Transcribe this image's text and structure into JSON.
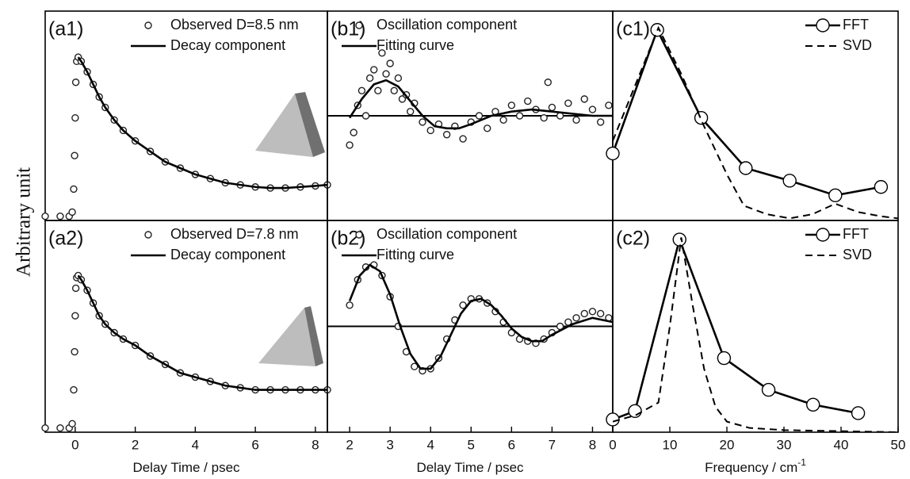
{
  "figure": {
    "ylabel": "Arbitrary unit"
  },
  "chart_data": [
    {
      "type": "line",
      "label": "(a1)",
      "xlim": [
        -1,
        8.4
      ],
      "ylim": [
        0,
        1
      ],
      "marker_size": 4,
      "series": [
        {
          "name": "Observed D=8.5 nm",
          "color": "#222222",
          "marker": "circle",
          "line": false,
          "x": [
            -1,
            -0.5,
            -0.2,
            -0.1,
            -0.05,
            -0.02,
            0,
            0.02,
            0.05,
            0.1,
            0.2,
            0.4,
            0.6,
            0.8,
            1.0,
            1.3,
            1.6,
            2,
            2.5,
            3,
            3.5,
            4,
            4.5,
            5,
            5.5,
            6,
            6.5,
            7,
            7.5,
            8,
            8.4
          ],
          "values": [
            0.02,
            0.02,
            0.02,
            0.04,
            0.15,
            0.31,
            0.49,
            0.66,
            0.76,
            0.78,
            0.76,
            0.71,
            0.65,
            0.59,
            0.54,
            0.48,
            0.43,
            0.38,
            0.33,
            0.28,
            0.25,
            0.22,
            0.2,
            0.18,
            0.17,
            0.16,
            0.155,
            0.155,
            0.16,
            0.165,
            0.17
          ]
        },
        {
          "name": "Decay component",
          "color": "#000000",
          "marker": "none",
          "line": true,
          "x": [
            0.1,
            0.2,
            0.4,
            0.6,
            0.8,
            1.0,
            1.3,
            1.6,
            2,
            2.5,
            3,
            3.5,
            4,
            4.5,
            5,
            5.5,
            6,
            6.5,
            7,
            7.5,
            8,
            8.4
          ],
          "values": [
            0.78,
            0.76,
            0.71,
            0.65,
            0.59,
            0.54,
            0.48,
            0.43,
            0.38,
            0.33,
            0.28,
            0.25,
            0.22,
            0.2,
            0.18,
            0.17,
            0.16,
            0.155,
            0.155,
            0.16,
            0.165,
            0.17
          ]
        }
      ]
    },
    {
      "type": "line",
      "label": "(b1)",
      "xlim": [
        1.45,
        8.5
      ],
      "ylim": [
        0,
        1
      ],
      "marker_size": 4,
      "baseline": 0.5,
      "series": [
        {
          "name": "Oscillation component",
          "color": "#222222",
          "marker": "circle",
          "line": false,
          "x": [
            2.0,
            2.1,
            2.2,
            2.3,
            2.4,
            2.5,
            2.6,
            2.7,
            2.8,
            2.9,
            3.0,
            3.1,
            3.2,
            3.3,
            3.4,
            3.5,
            3.6,
            3.8,
            4.0,
            4.2,
            4.4,
            4.6,
            4.8,
            5.0,
            5.2,
            5.4,
            5.6,
            5.8,
            6.0,
            6.2,
            6.4,
            6.6,
            6.8,
            6.9,
            7.0,
            7.2,
            7.4,
            7.6,
            7.8,
            8.0,
            8.2,
            8.4
          ],
          "values": [
            0.36,
            0.42,
            0.55,
            0.62,
            0.5,
            0.68,
            0.72,
            0.62,
            0.8,
            0.7,
            0.75,
            0.62,
            0.68,
            0.58,
            0.6,
            0.52,
            0.56,
            0.47,
            0.43,
            0.46,
            0.41,
            0.45,
            0.39,
            0.47,
            0.5,
            0.44,
            0.52,
            0.48,
            0.55,
            0.5,
            0.57,
            0.53,
            0.49,
            0.66,
            0.54,
            0.5,
            0.56,
            0.48,
            0.58,
            0.53,
            0.47,
            0.55
          ]
        },
        {
          "name": "Fitting curve",
          "color": "#000000",
          "marker": "none",
          "line": true,
          "x": [
            2,
            2.3,
            2.6,
            2.9,
            3.2,
            3.5,
            3.8,
            4.1,
            4.4,
            4.7,
            5.0,
            5.5,
            6,
            6.5,
            7,
            7.5,
            8,
            8.5
          ],
          "values": [
            0.49,
            0.58,
            0.65,
            0.67,
            0.64,
            0.57,
            0.5,
            0.45,
            0.44,
            0.44,
            0.46,
            0.5,
            0.52,
            0.53,
            0.52,
            0.51,
            0.5,
            0.5
          ]
        }
      ]
    },
    {
      "type": "line",
      "label": "(c1)",
      "xlim": [
        0,
        50
      ],
      "ylim": [
        0,
        1
      ],
      "marker_size": 8,
      "series": [
        {
          "name": "FFT",
          "color": "#000000",
          "marker": "circle",
          "line": true,
          "x": [
            0,
            7.8,
            15.5,
            23.3,
            31,
            39,
            47
          ],
          "values": [
            0.32,
            0.91,
            0.49,
            0.25,
            0.19,
            0.12,
            0.16
          ]
        },
        {
          "name": "SVD",
          "color": "#000000",
          "marker": "none",
          "line": true,
          "dash": true,
          "x": [
            0,
            4,
            8,
            12,
            16,
            20,
            23,
            27,
            31,
            35,
            39,
            43,
            47,
            50
          ],
          "values": [
            0.38,
            0.65,
            0.92,
            0.7,
            0.45,
            0.22,
            0.07,
            0.03,
            0.01,
            0.03,
            0.08,
            0.04,
            0.02,
            0.01
          ]
        }
      ]
    },
    {
      "type": "line",
      "label": "(a2)",
      "xlim": [
        -1,
        8.4
      ],
      "ylim": [
        0,
        1
      ],
      "marker_size": 4,
      "xticks": [
        0,
        2,
        4,
        6,
        8
      ],
      "xlabel": "Delay Time / psec",
      "series": [
        {
          "name": "Observed D=7.8 nm",
          "color": "#222222",
          "marker": "circle",
          "line": false,
          "x": [
            -1,
            -0.5,
            -0.2,
            -0.1,
            -0.05,
            -0.02,
            0,
            0.02,
            0.05,
            0.1,
            0.2,
            0.4,
            0.6,
            0.8,
            1.0,
            1.3,
            1.6,
            2,
            2.5,
            3,
            3.5,
            4,
            4.5,
            5,
            5.5,
            6,
            6.5,
            7,
            7.5,
            8,
            8.4
          ],
          "values": [
            0.02,
            0.02,
            0.02,
            0.04,
            0.2,
            0.38,
            0.55,
            0.68,
            0.73,
            0.74,
            0.72,
            0.67,
            0.61,
            0.55,
            0.51,
            0.47,
            0.44,
            0.41,
            0.36,
            0.32,
            0.28,
            0.26,
            0.24,
            0.22,
            0.21,
            0.2,
            0.2,
            0.2,
            0.2,
            0.2,
            0.2
          ]
        },
        {
          "name": "Decay component",
          "color": "#000000",
          "marker": "none",
          "line": true,
          "x": [
            0.1,
            0.2,
            0.4,
            0.6,
            0.8,
            1.0,
            1.3,
            1.6,
            2,
            2.5,
            3,
            3.5,
            4,
            4.5,
            5,
            5.5,
            6,
            6.5,
            7,
            7.5,
            8,
            8.4
          ],
          "values": [
            0.74,
            0.72,
            0.67,
            0.61,
            0.55,
            0.51,
            0.47,
            0.44,
            0.41,
            0.36,
            0.32,
            0.28,
            0.26,
            0.24,
            0.22,
            0.21,
            0.2,
            0.2,
            0.2,
            0.2,
            0.2,
            0.2
          ]
        }
      ]
    },
    {
      "type": "line",
      "label": "(b2)",
      "xlim": [
        1.45,
        8.5
      ],
      "ylim": [
        0,
        1
      ],
      "marker_size": 4,
      "baseline": 0.5,
      "xticks": [
        2,
        3,
        4,
        5,
        6,
        7,
        8
      ],
      "xlabel": "Delay Time / psec",
      "series": [
        {
          "name": "Oscillation component",
          "color": "#222222",
          "marker": "circle",
          "line": false,
          "x": [
            2.0,
            2.2,
            2.4,
            2.6,
            2.8,
            3.0,
            3.2,
            3.4,
            3.6,
            3.8,
            4.0,
            4.2,
            4.4,
            4.6,
            4.8,
            5.0,
            5.2,
            5.4,
            5.6,
            5.8,
            6.0,
            6.2,
            6.4,
            6.6,
            6.8,
            7.0,
            7.2,
            7.4,
            7.6,
            7.8,
            8.0,
            8.2,
            8.4
          ],
          "values": [
            0.6,
            0.72,
            0.78,
            0.79,
            0.74,
            0.64,
            0.5,
            0.38,
            0.31,
            0.29,
            0.3,
            0.35,
            0.44,
            0.53,
            0.6,
            0.63,
            0.63,
            0.61,
            0.57,
            0.52,
            0.47,
            0.44,
            0.43,
            0.42,
            0.44,
            0.47,
            0.5,
            0.52,
            0.54,
            0.56,
            0.57,
            0.56,
            0.54
          ]
        },
        {
          "name": "Fitting curve",
          "color": "#000000",
          "marker": "none",
          "line": true,
          "x": [
            2,
            2.25,
            2.5,
            2.75,
            3,
            3.25,
            3.5,
            3.75,
            4,
            4.25,
            4.5,
            4.75,
            5,
            5.25,
            5.5,
            5.75,
            6,
            6.25,
            6.5,
            6.75,
            7,
            7.5,
            8,
            8.5
          ],
          "values": [
            0.62,
            0.74,
            0.79,
            0.76,
            0.65,
            0.5,
            0.37,
            0.3,
            0.3,
            0.36,
            0.46,
            0.56,
            0.62,
            0.63,
            0.6,
            0.55,
            0.49,
            0.45,
            0.43,
            0.43,
            0.46,
            0.51,
            0.54,
            0.52
          ]
        }
      ]
    },
    {
      "type": "line",
      "label": "(c2)",
      "xlim": [
        0,
        50
      ],
      "ylim": [
        0,
        1
      ],
      "marker_size": 8,
      "xticks": [
        0,
        10,
        20,
        30,
        40,
        50
      ],
      "xlabel": "Frequency / cm",
      "xlabel_sup": "-1",
      "series": [
        {
          "name": "FFT",
          "color": "#000000",
          "marker": "circle",
          "line": true,
          "x": [
            0,
            3.9,
            11.7,
            19.5,
            27.3,
            35.1,
            43
          ],
          "values": [
            0.06,
            0.1,
            0.91,
            0.35,
            0.2,
            0.13,
            0.09
          ]
        },
        {
          "name": "SVD",
          "color": "#000000",
          "marker": "none",
          "line": true,
          "dash": true,
          "x": [
            0,
            4,
            8,
            10,
            12,
            14,
            16,
            18,
            20,
            24,
            30,
            40,
            50
          ],
          "values": [
            0.05,
            0.08,
            0.14,
            0.5,
            0.92,
            0.6,
            0.3,
            0.12,
            0.05,
            0.02,
            0.01,
            0.005,
            0
          ]
        }
      ]
    }
  ]
}
